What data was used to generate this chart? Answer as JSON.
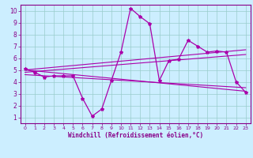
{
  "xlabel": "Windchill (Refroidissement éolien,°C)",
  "xlim": [
    -0.5,
    23.5
  ],
  "ylim": [
    0.5,
    10.5
  ],
  "xticks": [
    0,
    1,
    2,
    3,
    4,
    5,
    6,
    7,
    8,
    9,
    10,
    11,
    12,
    13,
    14,
    15,
    16,
    17,
    18,
    19,
    20,
    21,
    22,
    23
  ],
  "yticks": [
    1,
    2,
    3,
    4,
    5,
    6,
    7,
    8,
    9,
    10
  ],
  "bg_color": "#cceeff",
  "line_color": "#aa00aa",
  "grid_color": "#99cccc",
  "main_line_x": [
    0,
    1,
    2,
    3,
    4,
    5,
    6,
    7,
    8,
    9,
    10,
    11,
    12,
    13,
    14,
    15,
    16,
    17,
    18,
    19,
    20,
    21,
    22,
    23
  ],
  "main_line_y": [
    5.1,
    4.8,
    4.4,
    4.5,
    4.5,
    4.5,
    2.6,
    1.1,
    1.7,
    4.1,
    6.5,
    10.2,
    9.5,
    8.9,
    4.1,
    5.8,
    5.9,
    7.5,
    7.0,
    6.5,
    6.6,
    6.5,
    4.0,
    3.1
  ],
  "trend1_x": [
    0,
    23
  ],
  "trend1_y": [
    5.0,
    6.7
  ],
  "trend2_x": [
    0,
    23
  ],
  "trend2_y": [
    4.8,
    6.3
  ],
  "trend3_x": [
    0,
    23
  ],
  "trend3_y": [
    5.0,
    3.2
  ],
  "trend4_x": [
    0,
    23
  ],
  "trend4_y": [
    4.6,
    3.5
  ]
}
